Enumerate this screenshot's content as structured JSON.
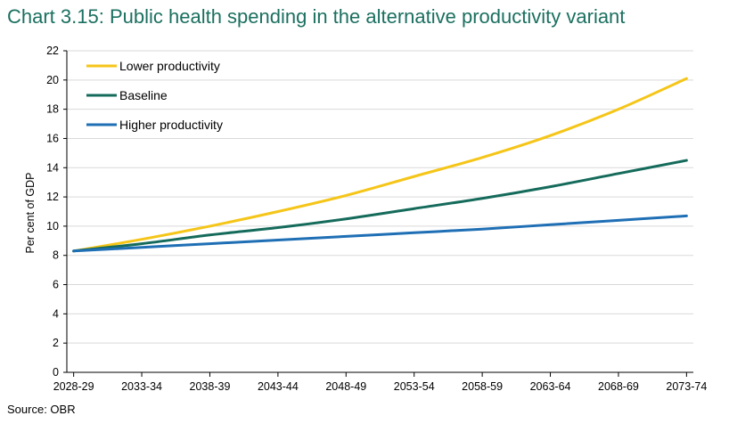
{
  "title": "Chart 3.15: Public health spending in the alternative productivity variant",
  "source": "Source: OBR",
  "chart_data": {
    "type": "line",
    "title": "Chart 3.15: Public health spending in the alternative productivity variant",
    "xlabel": "",
    "ylabel": "Per cent of GDP",
    "ylim": [
      0,
      22
    ],
    "yticks": [
      0,
      2,
      4,
      6,
      8,
      10,
      12,
      14,
      16,
      18,
      20,
      22
    ],
    "x_tick_labels": [
      "2028-29",
      "2033-34",
      "2038-39",
      "2043-44",
      "2048-49",
      "2053-54",
      "2058-59",
      "2063-64",
      "2068-69",
      "2073-74"
    ],
    "grid": "horizontal",
    "legend_position": "top-left",
    "series": [
      {
        "name": "Lower productivity",
        "color": "#f5c518",
        "values": [
          8.3,
          9.1,
          10.0,
          11.0,
          12.1,
          13.4,
          14.7,
          16.2,
          18.0,
          20.1
        ]
      },
      {
        "name": "Baseline",
        "color": "#156b5b",
        "values": [
          8.3,
          8.8,
          9.4,
          9.9,
          10.5,
          11.2,
          11.9,
          12.7,
          13.6,
          14.5
        ]
      },
      {
        "name": "Higher productivity",
        "color": "#1f6fb5",
        "values": [
          8.3,
          8.55,
          8.8,
          9.05,
          9.3,
          9.55,
          9.8,
          10.1,
          10.4,
          10.7
        ]
      }
    ]
  }
}
